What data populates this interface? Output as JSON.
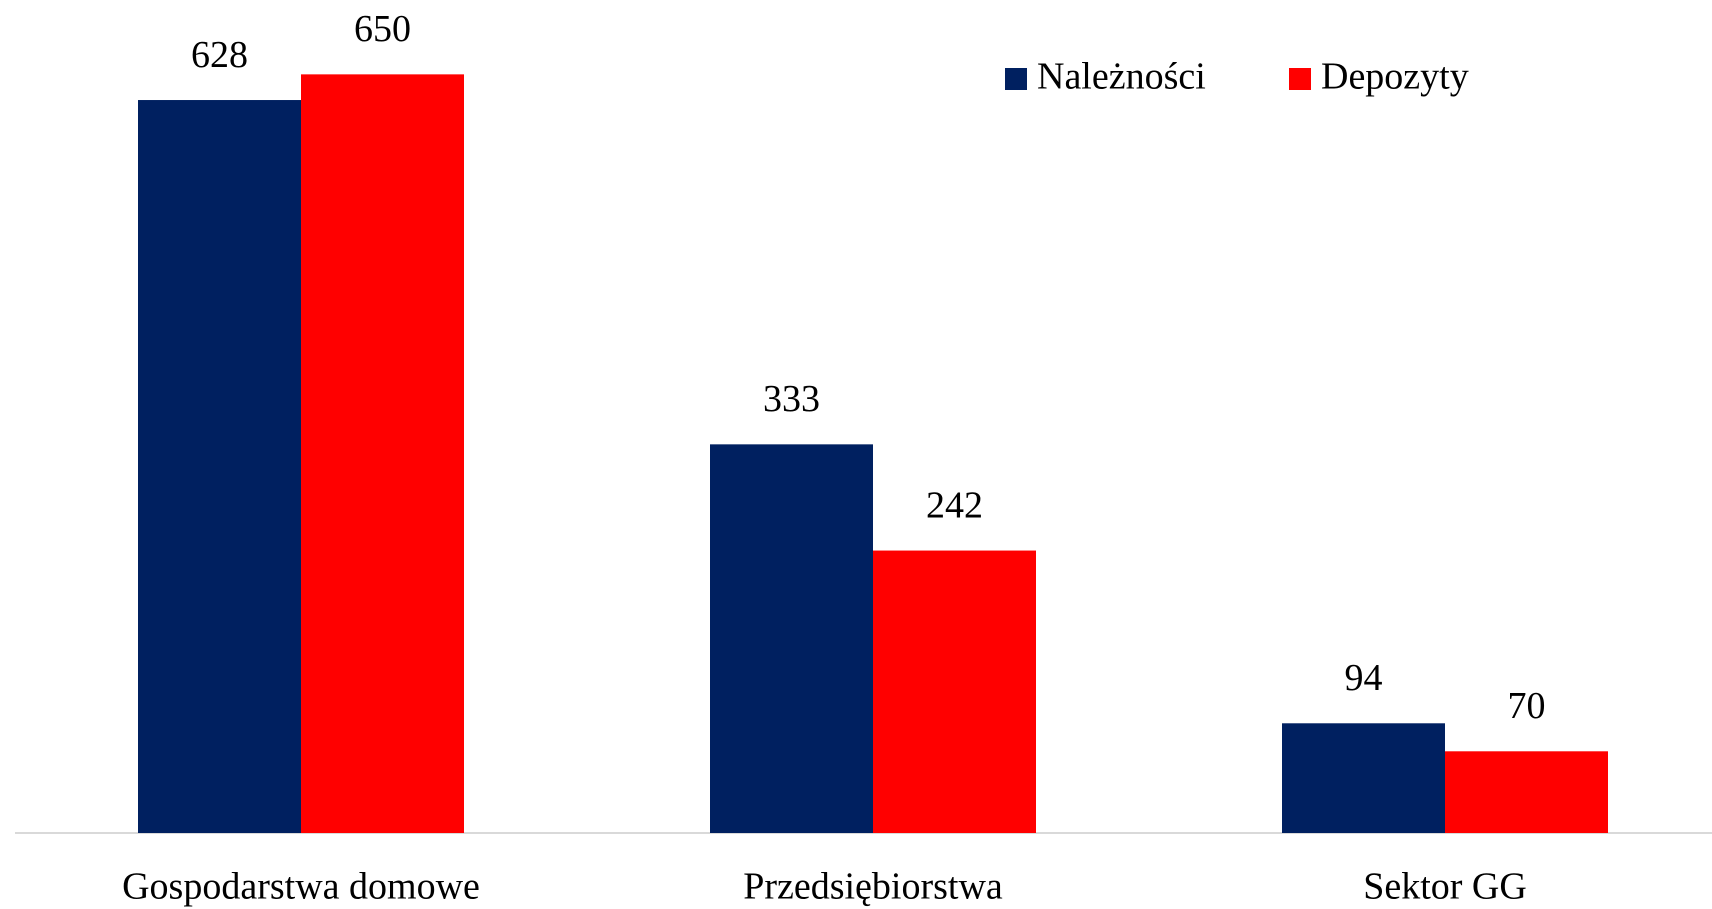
{
  "chart_data": {
    "type": "bar",
    "categories": [
      "Gospodarstwa domowe",
      "Przedsiębiorstwa",
      "Sektor GG"
    ],
    "series": [
      {
        "name": "Należności",
        "color": "#002060",
        "values": [
          628,
          333,
          94
        ]
      },
      {
        "name": "Depozyty",
        "color": "#ff0000",
        "values": [
          650,
          242,
          70
        ]
      }
    ],
    "ylim": [
      0,
      700
    ],
    "legend": "top-right"
  }
}
